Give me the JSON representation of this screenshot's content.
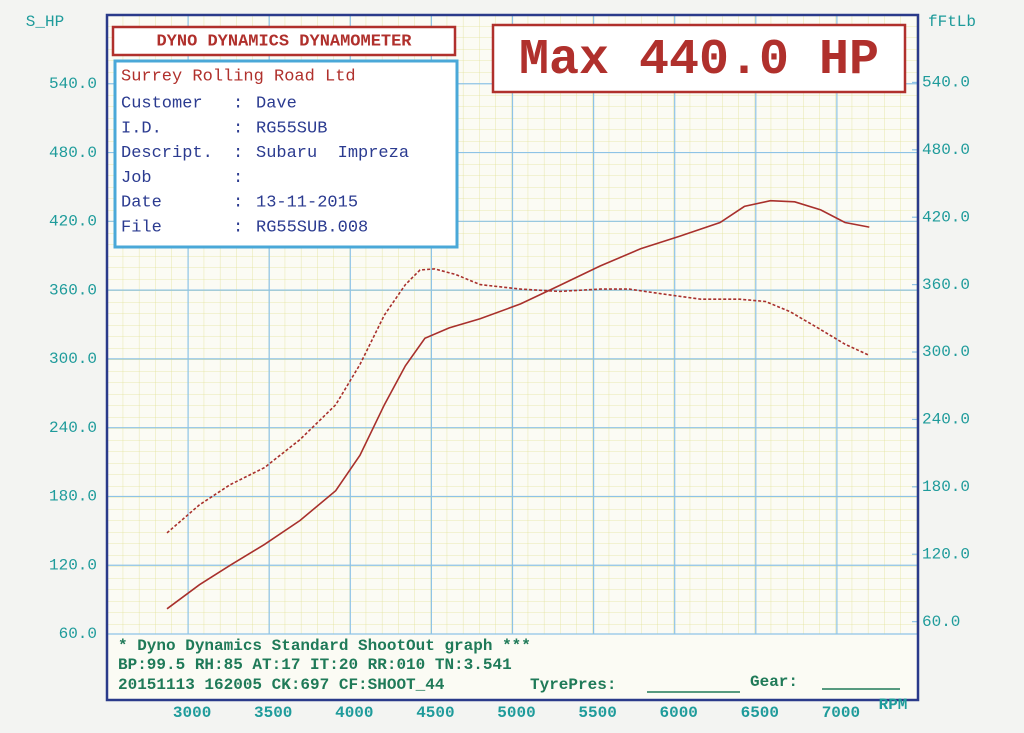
{
  "chart_data": {
    "type": "line",
    "title": "DYNO DYNAMICS DYNAMOMETER",
    "headline": "Max 440.0 HP",
    "ylabel": "S_HP",
    "y2label": "fFtLb",
    "xlabel": "RPM",
    "xlim": [
      2500,
      7500
    ],
    "xticks": [
      3000,
      3500,
      4000,
      4500,
      5000,
      5500,
      6000,
      6500,
      7000
    ],
    "ylim": [
      60,
      600
    ],
    "yticks": [
      {
        "value": 60,
        "label": "60.0"
      },
      {
        "value": 120,
        "label": "120.0"
      },
      {
        "value": 180,
        "label": "180.0"
      },
      {
        "value": 240,
        "label": "240.0"
      },
      {
        "value": 300,
        "label": "300.0"
      },
      {
        "value": 360,
        "label": "360.0"
      },
      {
        "value": 420,
        "label": "420.0"
      },
      {
        "value": 480,
        "label": "480.0"
      },
      {
        "value": 540,
        "label": "540.0"
      }
    ],
    "y2lim": [
      49,
      600
    ],
    "y2ticks": [
      {
        "value": 60,
        "label": "60.0"
      },
      {
        "value": 120,
        "label": "120.0"
      },
      {
        "value": 180,
        "label": "180.0"
      },
      {
        "value": 240,
        "label": "240.0"
      },
      {
        "value": 300,
        "label": "300.0"
      },
      {
        "value": 360,
        "label": "360.0"
      },
      {
        "value": 420,
        "label": "420.0"
      },
      {
        "value": 480,
        "label": "480.0"
      },
      {
        "value": 540,
        "label": "540.0"
      }
    ],
    "grid": true,
    "series": [
      {
        "name": "S_HP",
        "color": "#a8302c",
        "dashed": false,
        "x": [
          2870,
          3070,
          3260,
          3470,
          3690,
          3910,
          4060,
          4210,
          4340,
          4460,
          4610,
          4800,
          5050,
          5290,
          5540,
          5790,
          6030,
          6280,
          6430,
          6590,
          6740,
          6900,
          7050,
          7200
        ],
        "values": [
          82,
          103,
          120,
          138,
          159,
          185,
          216,
          260,
          294,
          318,
          327,
          335,
          348,
          364,
          381,
          396,
          407,
          419,
          433,
          438,
          437,
          430,
          419,
          415
        ]
      },
      {
        "name": "fFtLb",
        "color": "#a8302c",
        "dashed": true,
        "axis": "y2",
        "x": [
          2870,
          3070,
          3260,
          3470,
          3690,
          3910,
          4060,
          4210,
          4340,
          4430,
          4520,
          4650,
          4800,
          5050,
          5290,
          5540,
          5720,
          5910,
          6160,
          6400,
          6560,
          6710,
          6900,
          7050,
          7200
        ],
        "values": [
          139,
          164,
          182,
          197,
          222,
          253,
          289,
          333,
          360,
          373,
          374,
          369,
          360,
          356,
          354,
          356,
          356,
          352,
          347,
          347,
          345,
          336,
          320,
          307,
          297
        ]
      }
    ],
    "info": {
      "company": "Surrey Rolling Road Ltd",
      "separator": ":",
      "fields": [
        {
          "label": "Customer",
          "value": "Dave"
        },
        {
          "label": "I.D.",
          "value": "RG55SUB"
        },
        {
          "label": "Descript.",
          "value": "Subaru  Impreza"
        },
        {
          "label": "Job"
        },
        {
          "label": "Date",
          "value": "13-11-2015"
        },
        {
          "label": "File",
          "value": "RG55SUB.008",
          "highlight": true
        }
      ]
    },
    "footer": {
      "caption": "* Dyno Dynamics Standard ShootOut graph ***",
      "conditions": "BP:99.5  RH:85  AT:17  IT:20  RR:010  TN:3.541",
      "run": "20151113 162005 CK:697 CF:SHOOT_44",
      "tyre_label": "TyrePres:",
      "gear_label": "Gear:"
    }
  }
}
